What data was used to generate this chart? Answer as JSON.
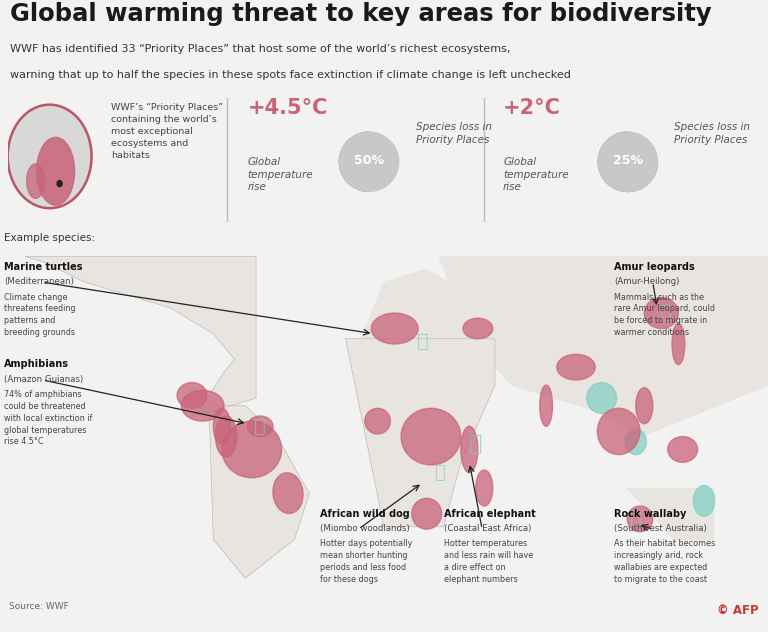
{
  "title": "Global warming threat to key areas for biodiversity",
  "subtitle1": "WWF has identified 33 “Priority Places” that host some of the world’s richest ecosystems,",
  "subtitle2": "warning that up to half the species in these spots face extinction if climate change is left unchecked",
  "bg_color": "#f2f2f2",
  "map_bg": "#cce0ed",
  "hotspot_color": "#c9637a",
  "highlight_color": "#7ecec4",
  "land_color": "#e8e4df",
  "title_color": "#1a1a1a",
  "subtitle_color": "#333333",
  "temp1": "+4.5°C",
  "temp2": "+2°C",
  "pct1": "50%",
  "pct2": "25%",
  "pie1_filled": 0.5,
  "pie2_filled": 0.25,
  "pie_color_filled": "#c9637a",
  "pie_color_empty": "#c8c8c8",
  "temp_color": "#c9637a",
  "source": "Source: WWF",
  "afp": "© AFP",
  "example_label": "Example species:",
  "wwf_label": "WWF’s “Priority Places”\ncontaining the world’s\nmost exceptional\necosystems and\nhabitats",
  "ann_marine_title": "Marine turtles",
  "ann_marine_sub": "(Mediterranean)",
  "ann_marine_body": "Climate change\nthreatens feeding\npatterns and\nbreeding grounds",
  "ann_amphibians_title": "Amphibians",
  "ann_amphibians_sub": "(Amazon Guianas)",
  "ann_amphibians_body": "74% of amphibians\ncould be threatened\nwith local extinction if\nglobal temperatures\nrise 4.5°C",
  "ann_dog_title": "African wild dog",
  "ann_dog_sub": "(Miombo woodlands)",
  "ann_dog_body": "Hotter days potentially\nmean shorter hunting\nperiods and less food\nfor these dogs",
  "ann_elephant_title": "African elephant",
  "ann_elephant_sub": "(Coastal East Africa)",
  "ann_elephant_body": "Hotter temperatures\nand less rain will have\na dire effect on\nelephant numbers",
  "ann_amur_title": "Amur leopards",
  "ann_amur_sub": "(Amur-Heilong)",
  "ann_amur_body": "Mammals, such as the\nrare Amur leopard, could\nbe forced to migrate in\nwarmer conditions",
  "ann_wallaby_title": "Rock wallaby",
  "ann_wallaby_sub": "(Southwest Australia)",
  "ann_wallaby_body": "As their habitat becomes\nincreasingly arid, rock\nwallabies are expected\nto migrate to the coast"
}
